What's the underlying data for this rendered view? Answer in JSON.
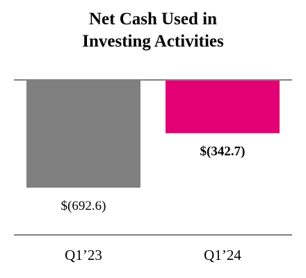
{
  "chart_data": {
    "type": "bar",
    "title_lines": [
      "Net Cash Used in",
      "Investing Activities"
    ],
    "categories": [
      "Q1’23",
      "Q1’24"
    ],
    "values": [
      -692.6,
      -342.7
    ],
    "data_labels": [
      "$(692.6)",
      "$(342.7)"
    ],
    "data_label_bold": [
      false,
      true
    ],
    "colors": [
      "#808080",
      "#e20074"
    ],
    "baseline_color": "#808080",
    "ylim": [
      -692.6,
      0
    ],
    "grid": false,
    "legend": "none"
  }
}
